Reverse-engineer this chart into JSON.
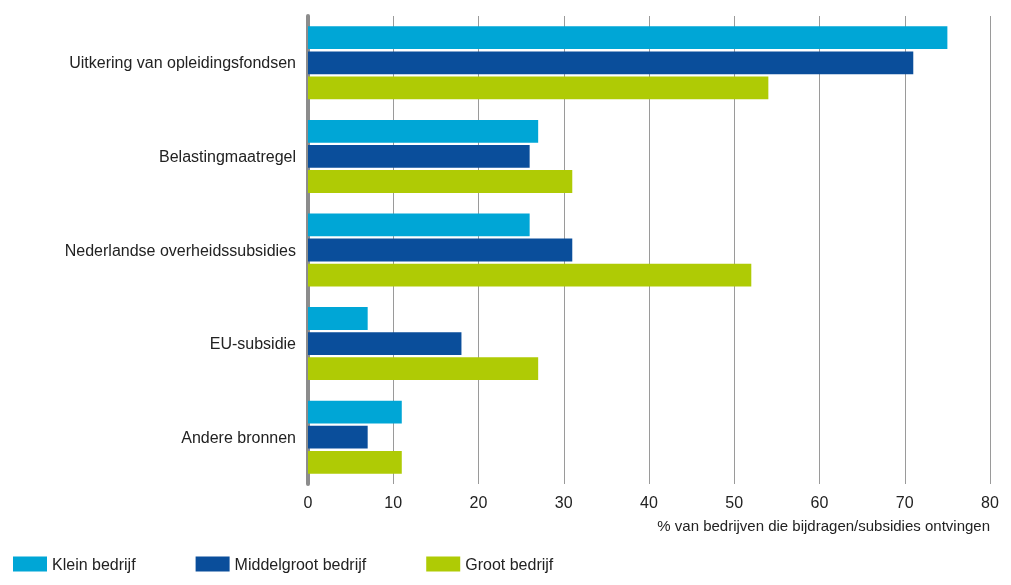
{
  "chart_data": {
    "type": "bar",
    "orientation": "horizontal",
    "xlabel": "% van bedrijven die bijdragen/subsidies ontvingen",
    "categories": [
      "Uitkering van opleidingsfondsen",
      "Belastingmaatregel",
      "Nederlandse overheidssubsidies",
      "EU-subsidie",
      "Andere bronnen"
    ],
    "series": [
      {
        "name": "Klein bedrijf",
        "color": "#00a6d6",
        "values": [
          75,
          27,
          26,
          7,
          11
        ]
      },
      {
        "name": "Middelgroot bedrijf",
        "color": "#0a4e9b",
        "values": [
          71,
          26,
          31,
          18,
          7
        ]
      },
      {
        "name": "Groot bedrijf",
        "color": "#afcb05",
        "values": [
          54,
          31,
          52,
          27,
          11
        ]
      }
    ],
    "xlim": [
      0,
      80
    ],
    "xticks": [
      0,
      10,
      20,
      30,
      40,
      50,
      60,
      70,
      80
    ],
    "grid": "x",
    "legend": "bottom left"
  }
}
